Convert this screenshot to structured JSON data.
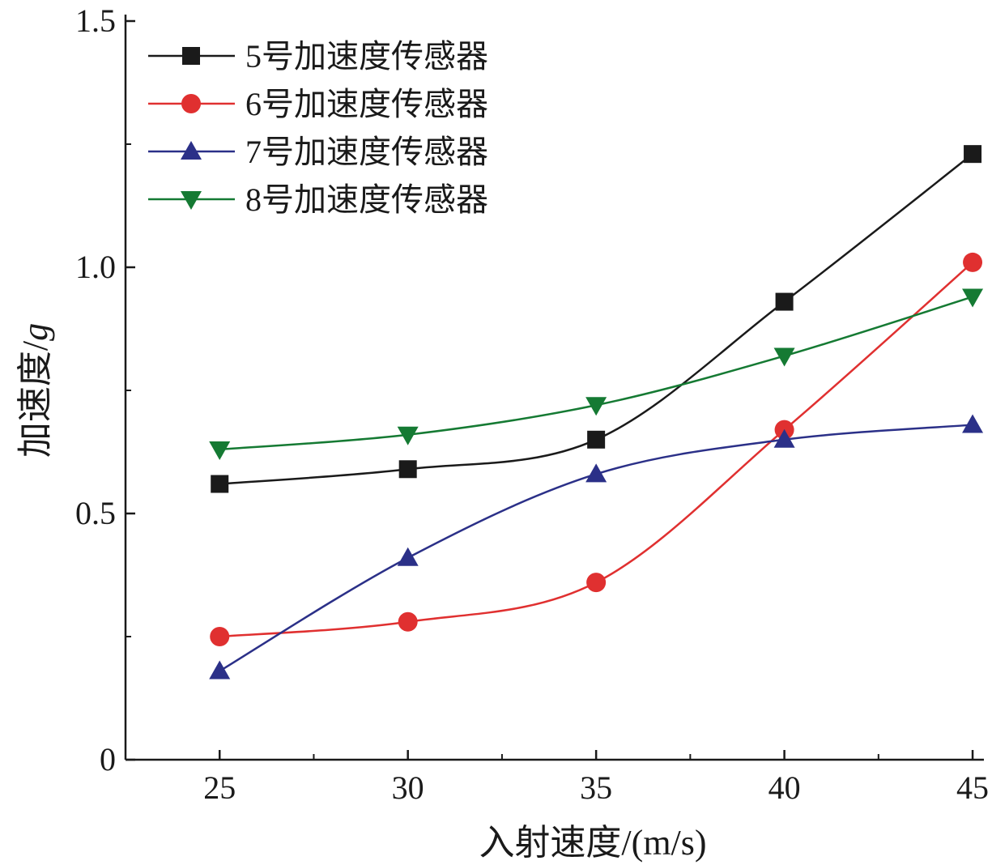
{
  "chart_data": {
    "type": "line",
    "title": "",
    "xlabel": "入射速度/(m/s)",
    "ylabel_main": "加速度/",
    "ylabel_unit": "g",
    "xlim": [
      22.5,
      45.3
    ],
    "ylim": [
      0,
      1.5
    ],
    "xticks": [
      25,
      30,
      35,
      40,
      45
    ],
    "xtick_labels": [
      "25",
      "30",
      "35",
      "40",
      "45"
    ],
    "yticks": [
      0,
      0.5,
      1.0,
      1.5
    ],
    "ytick_labels": [
      "0",
      "0.5",
      "1.0",
      "1.5"
    ],
    "grid": false,
    "legend_position": "top-left",
    "x": [
      25,
      30,
      35,
      40,
      45
    ],
    "series": [
      {
        "name": "5号加速度传感器",
        "color": "#1a1a1a",
        "marker": "square",
        "values": [
          0.56,
          0.59,
          0.65,
          0.93,
          1.23
        ]
      },
      {
        "name": "6号加速度传感器",
        "color": "#e03030",
        "marker": "circle",
        "values": [
          0.25,
          0.28,
          0.36,
          0.67,
          1.01
        ]
      },
      {
        "name": "7号加速度传感器",
        "color": "#2b3088",
        "marker": "triangle-up",
        "values": [
          0.18,
          0.41,
          0.58,
          0.65,
          0.68
        ]
      },
      {
        "name": "8号加速度传感器",
        "color": "#157a33",
        "marker": "triangle-down",
        "values": [
          0.63,
          0.66,
          0.72,
          0.82,
          0.94
        ]
      }
    ]
  }
}
